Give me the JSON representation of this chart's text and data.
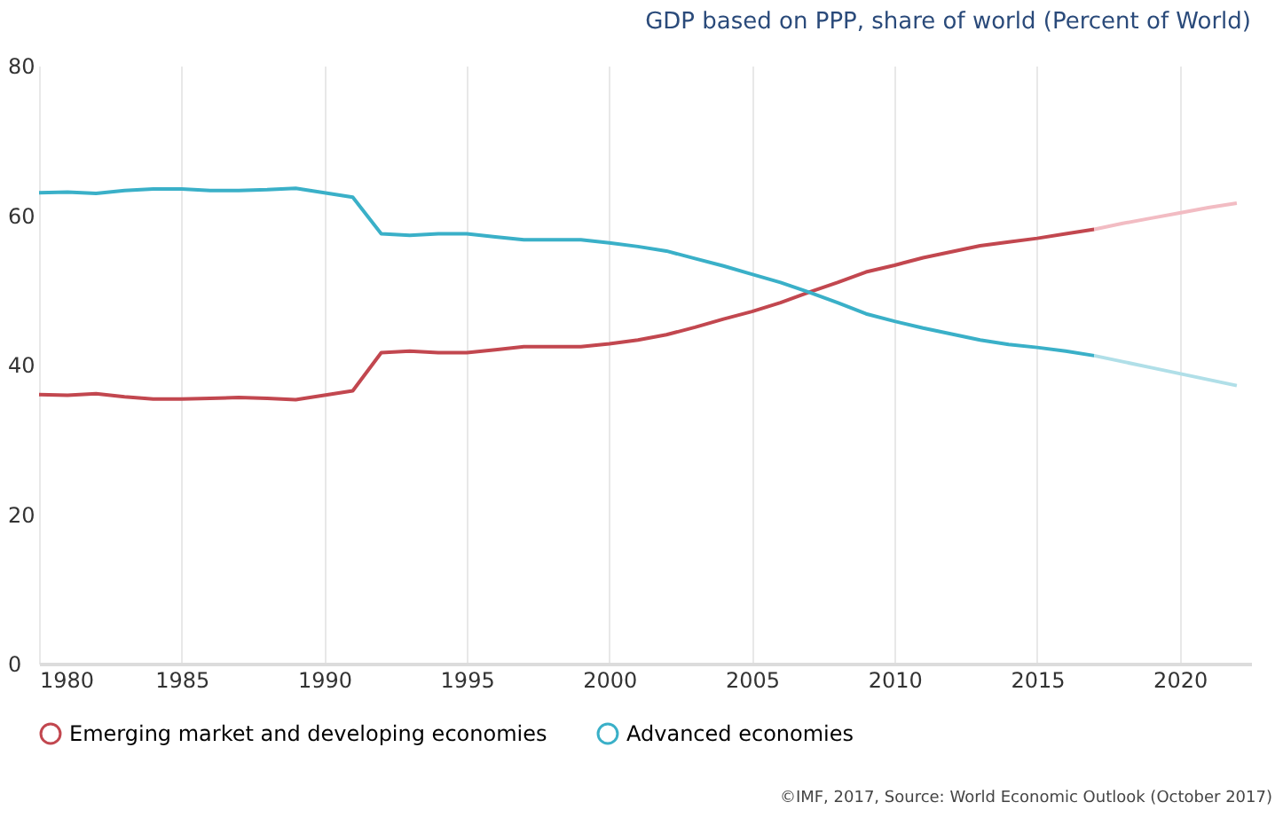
{
  "chart_data": {
    "type": "line",
    "title": "GDP based on PPP, share of world (Percent of World)",
    "annotations": [
      "©IMF, 2017, Source: World Economic Outlook (October 2017)"
    ],
    "series": [
      {
        "name": "Emerging market and developing economies",
        "color": "#c2474f",
        "x": [
          1980,
          1981,
          1982,
          1983,
          1984,
          1985,
          1986,
          1987,
          1988,
          1989,
          1990,
          1991,
          1992,
          1993,
          1994,
          1995,
          1996,
          1997,
          1998,
          1999,
          2000,
          2001,
          2002,
          2003,
          2004,
          2005,
          2006,
          2007,
          2008,
          2009,
          2010,
          2011,
          2012,
          2013,
          2014,
          2015,
          2016,
          2017
        ],
        "values": [
          36.0,
          35.9,
          36.1,
          35.7,
          35.4,
          35.4,
          35.5,
          35.6,
          35.5,
          35.3,
          35.9,
          36.5,
          41.6,
          41.8,
          41.6,
          41.6,
          42.0,
          42.4,
          42.4,
          42.4,
          42.8,
          43.3,
          44.0,
          45.0,
          46.1,
          47.1,
          48.3,
          49.7,
          51.0,
          52.4,
          53.3,
          54.3,
          55.1,
          55.9,
          56.4,
          56.9,
          57.5,
          58.1
        ]
      },
      {
        "name": "Advanced economies",
        "color": "#3ab0c8",
        "x": [
          1980,
          1981,
          1982,
          1983,
          1984,
          1985,
          1986,
          1987,
          1988,
          1989,
          1990,
          1991,
          1992,
          1993,
          1994,
          1995,
          1996,
          1997,
          1998,
          1999,
          2000,
          2001,
          2002,
          2003,
          2004,
          2005,
          2006,
          2007,
          2008,
          2009,
          2010,
          2011,
          2012,
          2013,
          2014,
          2015,
          2016,
          2017
        ],
        "values": [
          63.0,
          63.1,
          62.9,
          63.3,
          63.5,
          63.5,
          63.3,
          63.3,
          63.4,
          63.6,
          63.0,
          62.4,
          57.5,
          57.3,
          57.5,
          57.5,
          57.1,
          56.7,
          56.7,
          56.7,
          56.3,
          55.8,
          55.2,
          54.2,
          53.2,
          52.1,
          51.0,
          49.7,
          48.3,
          46.8,
          45.8,
          44.9,
          44.1,
          43.3,
          42.7,
          42.3,
          41.8,
          41.2
        ]
      },
      {
        "color": "#f2bcc3",
        "x": [
          2017,
          2018,
          2019,
          2020,
          2021,
          2022
        ],
        "values": [
          58.1,
          58.9,
          59.6,
          60.3,
          61.0,
          61.6
        ]
      },
      {
        "color": "#b0dfe8",
        "x": [
          2017,
          2018,
          2019,
          2020,
          2021,
          2022
        ],
        "values": [
          41.2,
          40.4,
          39.6,
          38.8,
          38.0,
          37.2
        ]
      }
    ],
    "xlim": [
      1980,
      2022.5
    ],
    "xticks": [
      1980,
      1985,
      1990,
      1995,
      2000,
      2005,
      2010,
      2015,
      2020
    ],
    "ylim": [
      0,
      80
    ],
    "yticks": [
      0,
      20,
      40,
      60,
      80
    ],
    "grid": "x",
    "legend": "bottom left"
  }
}
